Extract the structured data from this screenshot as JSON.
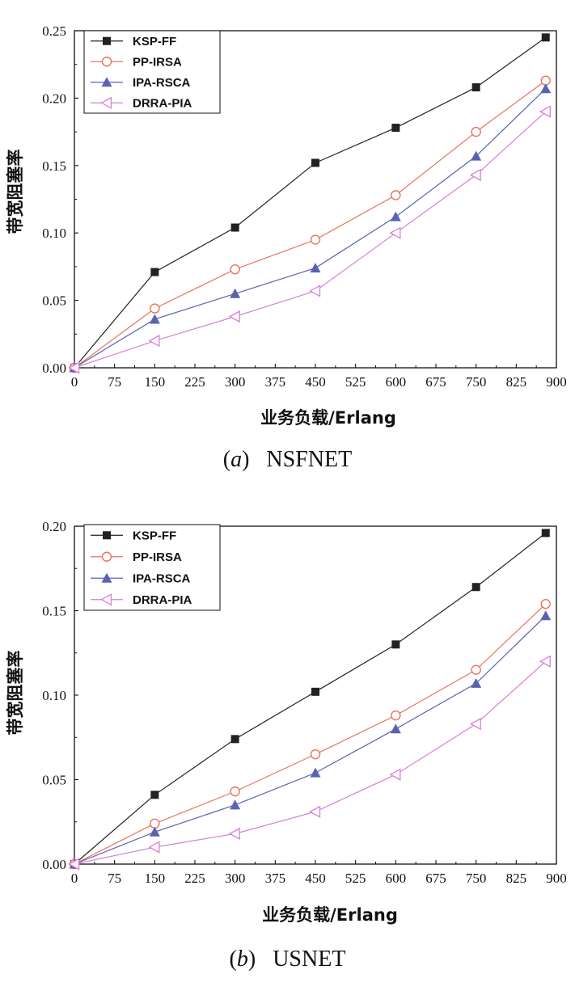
{
  "chart_data": [
    {
      "type": "line",
      "panel": "(a)",
      "caption_letter": "a",
      "caption_name": "NSFNET",
      "xlabel": "业务负载/Erlang",
      "ylabel": "带宽阻塞率",
      "xlim": [
        0,
        900
      ],
      "ylim": [
        0,
        0.25
      ],
      "xticks": [
        0,
        75,
        150,
        225,
        300,
        375,
        450,
        525,
        600,
        675,
        750,
        825,
        900
      ],
      "yticks": [
        "0.00",
        "0.05",
        "0.10",
        "0.15",
        "0.20",
        "0.25"
      ],
      "yticks_values": [
        0,
        0.05,
        0.1,
        0.15,
        0.2,
        0.25
      ],
      "legend_position": "top-left",
      "x": [
        0,
        150,
        300,
        450,
        600,
        750,
        880
      ],
      "series": [
        {
          "name": "KSP-FF",
          "color": "#222222",
          "marker": "square-filled",
          "values": [
            0,
            0.071,
            0.104,
            0.152,
            0.178,
            0.208,
            0.245
          ]
        },
        {
          "name": "PP-IRSA",
          "color": "#e8745c",
          "marker": "circle-open",
          "values": [
            0,
            0.044,
            0.073,
            0.095,
            0.128,
            0.175,
            0.213
          ]
        },
        {
          "name": "IPA-RSCA",
          "color": "#5a63b0",
          "marker": "triangle-up-filled",
          "values": [
            0,
            0.036,
            0.055,
            0.074,
            0.112,
            0.157,
            0.207
          ]
        },
        {
          "name": "DRRA-PIA",
          "color": "#d77fd7",
          "marker": "triangle-left-open",
          "values": [
            0,
            0.02,
            0.038,
            0.057,
            0.1,
            0.143,
            0.19
          ]
        }
      ]
    },
    {
      "type": "line",
      "panel": "(b)",
      "caption_letter": "b",
      "caption_name": "USNET",
      "xlabel": "业务负载/Erlang",
      "ylabel": "带宽阻塞率",
      "xlim": [
        0,
        900
      ],
      "ylim": [
        0,
        0.2
      ],
      "xticks": [
        0,
        75,
        150,
        225,
        300,
        375,
        450,
        525,
        600,
        675,
        750,
        825,
        900
      ],
      "yticks": [
        "0.00",
        "0.05",
        "0.10",
        "0.15",
        "0.20"
      ],
      "yticks_values": [
        0,
        0.05,
        0.1,
        0.15,
        0.2
      ],
      "legend_position": "top-left",
      "x": [
        0,
        150,
        300,
        450,
        600,
        750,
        880
      ],
      "series": [
        {
          "name": "KSP-FF",
          "color": "#222222",
          "marker": "square-filled",
          "values": [
            0,
            0.041,
            0.074,
            0.102,
            0.13,
            0.164,
            0.196
          ]
        },
        {
          "name": "PP-IRSA",
          "color": "#e8745c",
          "marker": "circle-open",
          "values": [
            0,
            0.024,
            0.043,
            0.065,
            0.088,
            0.115,
            0.154
          ]
        },
        {
          "name": "IPA-RSCA",
          "color": "#5a63b0",
          "marker": "triangle-up-filled",
          "values": [
            0,
            0.019,
            0.035,
            0.054,
            0.08,
            0.107,
            0.147
          ]
        },
        {
          "name": "DRRA-PIA",
          "color": "#d77fd7",
          "marker": "triangle-left-open",
          "values": [
            0,
            0.01,
            0.018,
            0.031,
            0.053,
            0.083,
            0.12
          ]
        }
      ]
    }
  ]
}
